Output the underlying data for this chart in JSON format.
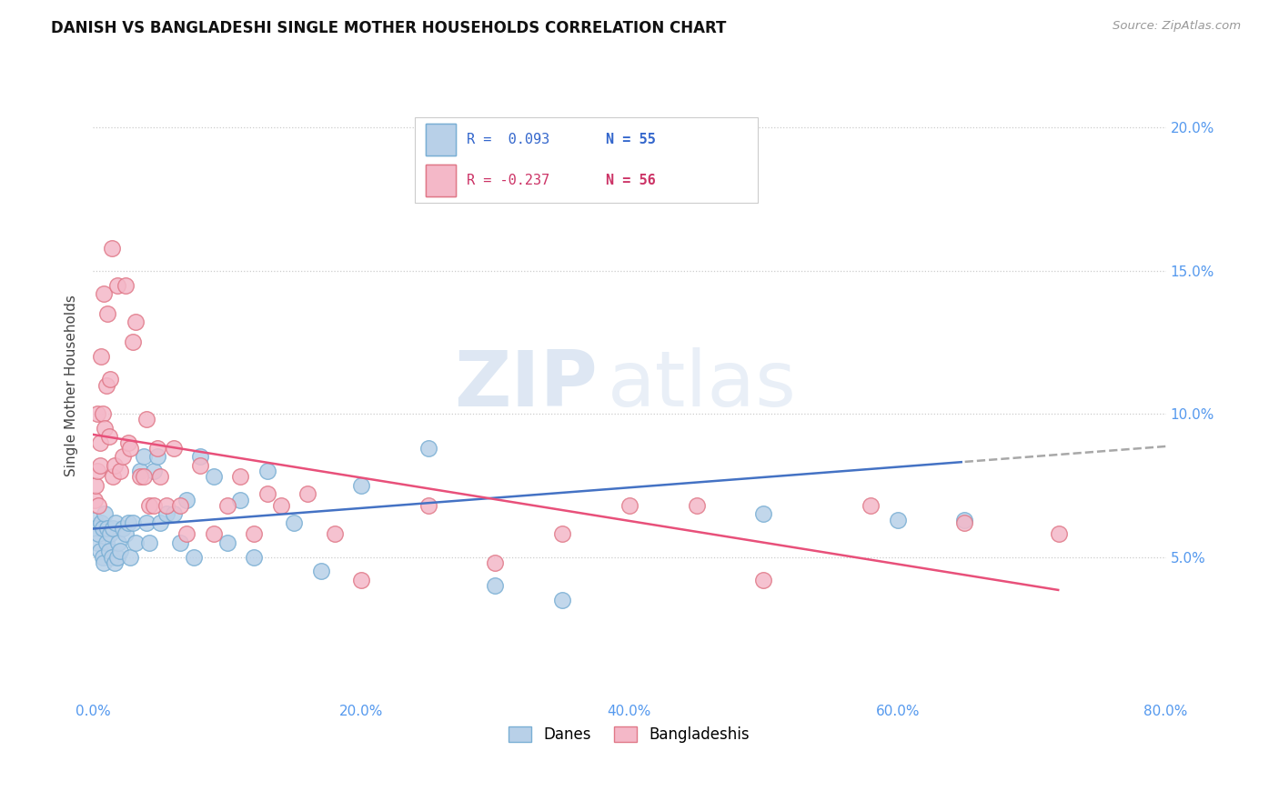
{
  "title": "DANISH VS BANGLADESHI SINGLE MOTHER HOUSEHOLDS CORRELATION CHART",
  "source": "Source: ZipAtlas.com",
  "ylabel": "Single Mother Households",
  "legend_danes": "Danes",
  "legend_bangladeshis": "Bangladeshis",
  "r_danes": "R =  0.093",
  "n_danes": "N = 55",
  "r_bangla": "R = -0.237",
  "n_bangla": "N = 56",
  "color_danes": "#b8d0e8",
  "color_bangladeshis": "#f4b8c8",
  "color_danes_edge": "#7aafd4",
  "color_bangladeshis_edge": "#e07888",
  "color_danes_line": "#4472c4",
  "color_bangladeshis_line": "#e8507a",
  "color_danes_line_dashed": "#a8a8a8",
  "background": "#ffffff",
  "watermark_zip": "ZIP",
  "watermark_atlas": "atlas",
  "danes_x": [
    0.001,
    0.002,
    0.003,
    0.004,
    0.005,
    0.006,
    0.007,
    0.007,
    0.008,
    0.009,
    0.01,
    0.011,
    0.012,
    0.013,
    0.014,
    0.015,
    0.016,
    0.017,
    0.018,
    0.019,
    0.02,
    0.022,
    0.024,
    0.026,
    0.028,
    0.03,
    0.032,
    0.035,
    0.038,
    0.04,
    0.042,
    0.045,
    0.048,
    0.05,
    0.055,
    0.06,
    0.065,
    0.07,
    0.075,
    0.08,
    0.09,
    0.1,
    0.11,
    0.12,
    0.13,
    0.15,
    0.17,
    0.2,
    0.25,
    0.3,
    0.35,
    0.4,
    0.5,
    0.6,
    0.65
  ],
  "danes_y": [
    0.063,
    0.06,
    0.055,
    0.058,
    0.052,
    0.062,
    0.05,
    0.06,
    0.048,
    0.065,
    0.055,
    0.06,
    0.052,
    0.058,
    0.05,
    0.06,
    0.048,
    0.062,
    0.05,
    0.055,
    0.052,
    0.06,
    0.058,
    0.062,
    0.05,
    0.062,
    0.055,
    0.08,
    0.085,
    0.062,
    0.055,
    0.08,
    0.085,
    0.062,
    0.065,
    0.065,
    0.055,
    0.07,
    0.05,
    0.085,
    0.078,
    0.055,
    0.07,
    0.05,
    0.08,
    0.062,
    0.045,
    0.075,
    0.088,
    0.04,
    0.035,
    0.19,
    0.065,
    0.063,
    0.063
  ],
  "bangla_x": [
    0.001,
    0.002,
    0.003,
    0.003,
    0.004,
    0.005,
    0.005,
    0.006,
    0.007,
    0.008,
    0.009,
    0.01,
    0.011,
    0.012,
    0.013,
    0.014,
    0.015,
    0.016,
    0.018,
    0.02,
    0.022,
    0.024,
    0.026,
    0.028,
    0.03,
    0.032,
    0.035,
    0.038,
    0.04,
    0.042,
    0.045,
    0.048,
    0.05,
    0.055,
    0.06,
    0.065,
    0.07,
    0.08,
    0.09,
    0.1,
    0.11,
    0.12,
    0.13,
    0.14,
    0.16,
    0.18,
    0.2,
    0.25,
    0.3,
    0.35,
    0.4,
    0.45,
    0.5,
    0.58,
    0.65,
    0.72
  ],
  "bangla_y": [
    0.07,
    0.075,
    0.1,
    0.08,
    0.068,
    0.09,
    0.082,
    0.12,
    0.1,
    0.142,
    0.095,
    0.11,
    0.135,
    0.092,
    0.112,
    0.158,
    0.078,
    0.082,
    0.145,
    0.08,
    0.085,
    0.145,
    0.09,
    0.088,
    0.125,
    0.132,
    0.078,
    0.078,
    0.098,
    0.068,
    0.068,
    0.088,
    0.078,
    0.068,
    0.088,
    0.068,
    0.058,
    0.082,
    0.058,
    0.068,
    0.078,
    0.058,
    0.072,
    0.068,
    0.072,
    0.058,
    0.042,
    0.068,
    0.048,
    0.058,
    0.068,
    0.068,
    0.042,
    0.068,
    0.062,
    0.058
  ],
  "xlim": [
    0.0,
    0.8
  ],
  "ylim": [
    0.0,
    0.22
  ],
  "xtick_vals": [
    0.0,
    0.2,
    0.4,
    0.6,
    0.8
  ],
  "ytick_vals": [
    0.05,
    0.1,
    0.15,
    0.2
  ]
}
